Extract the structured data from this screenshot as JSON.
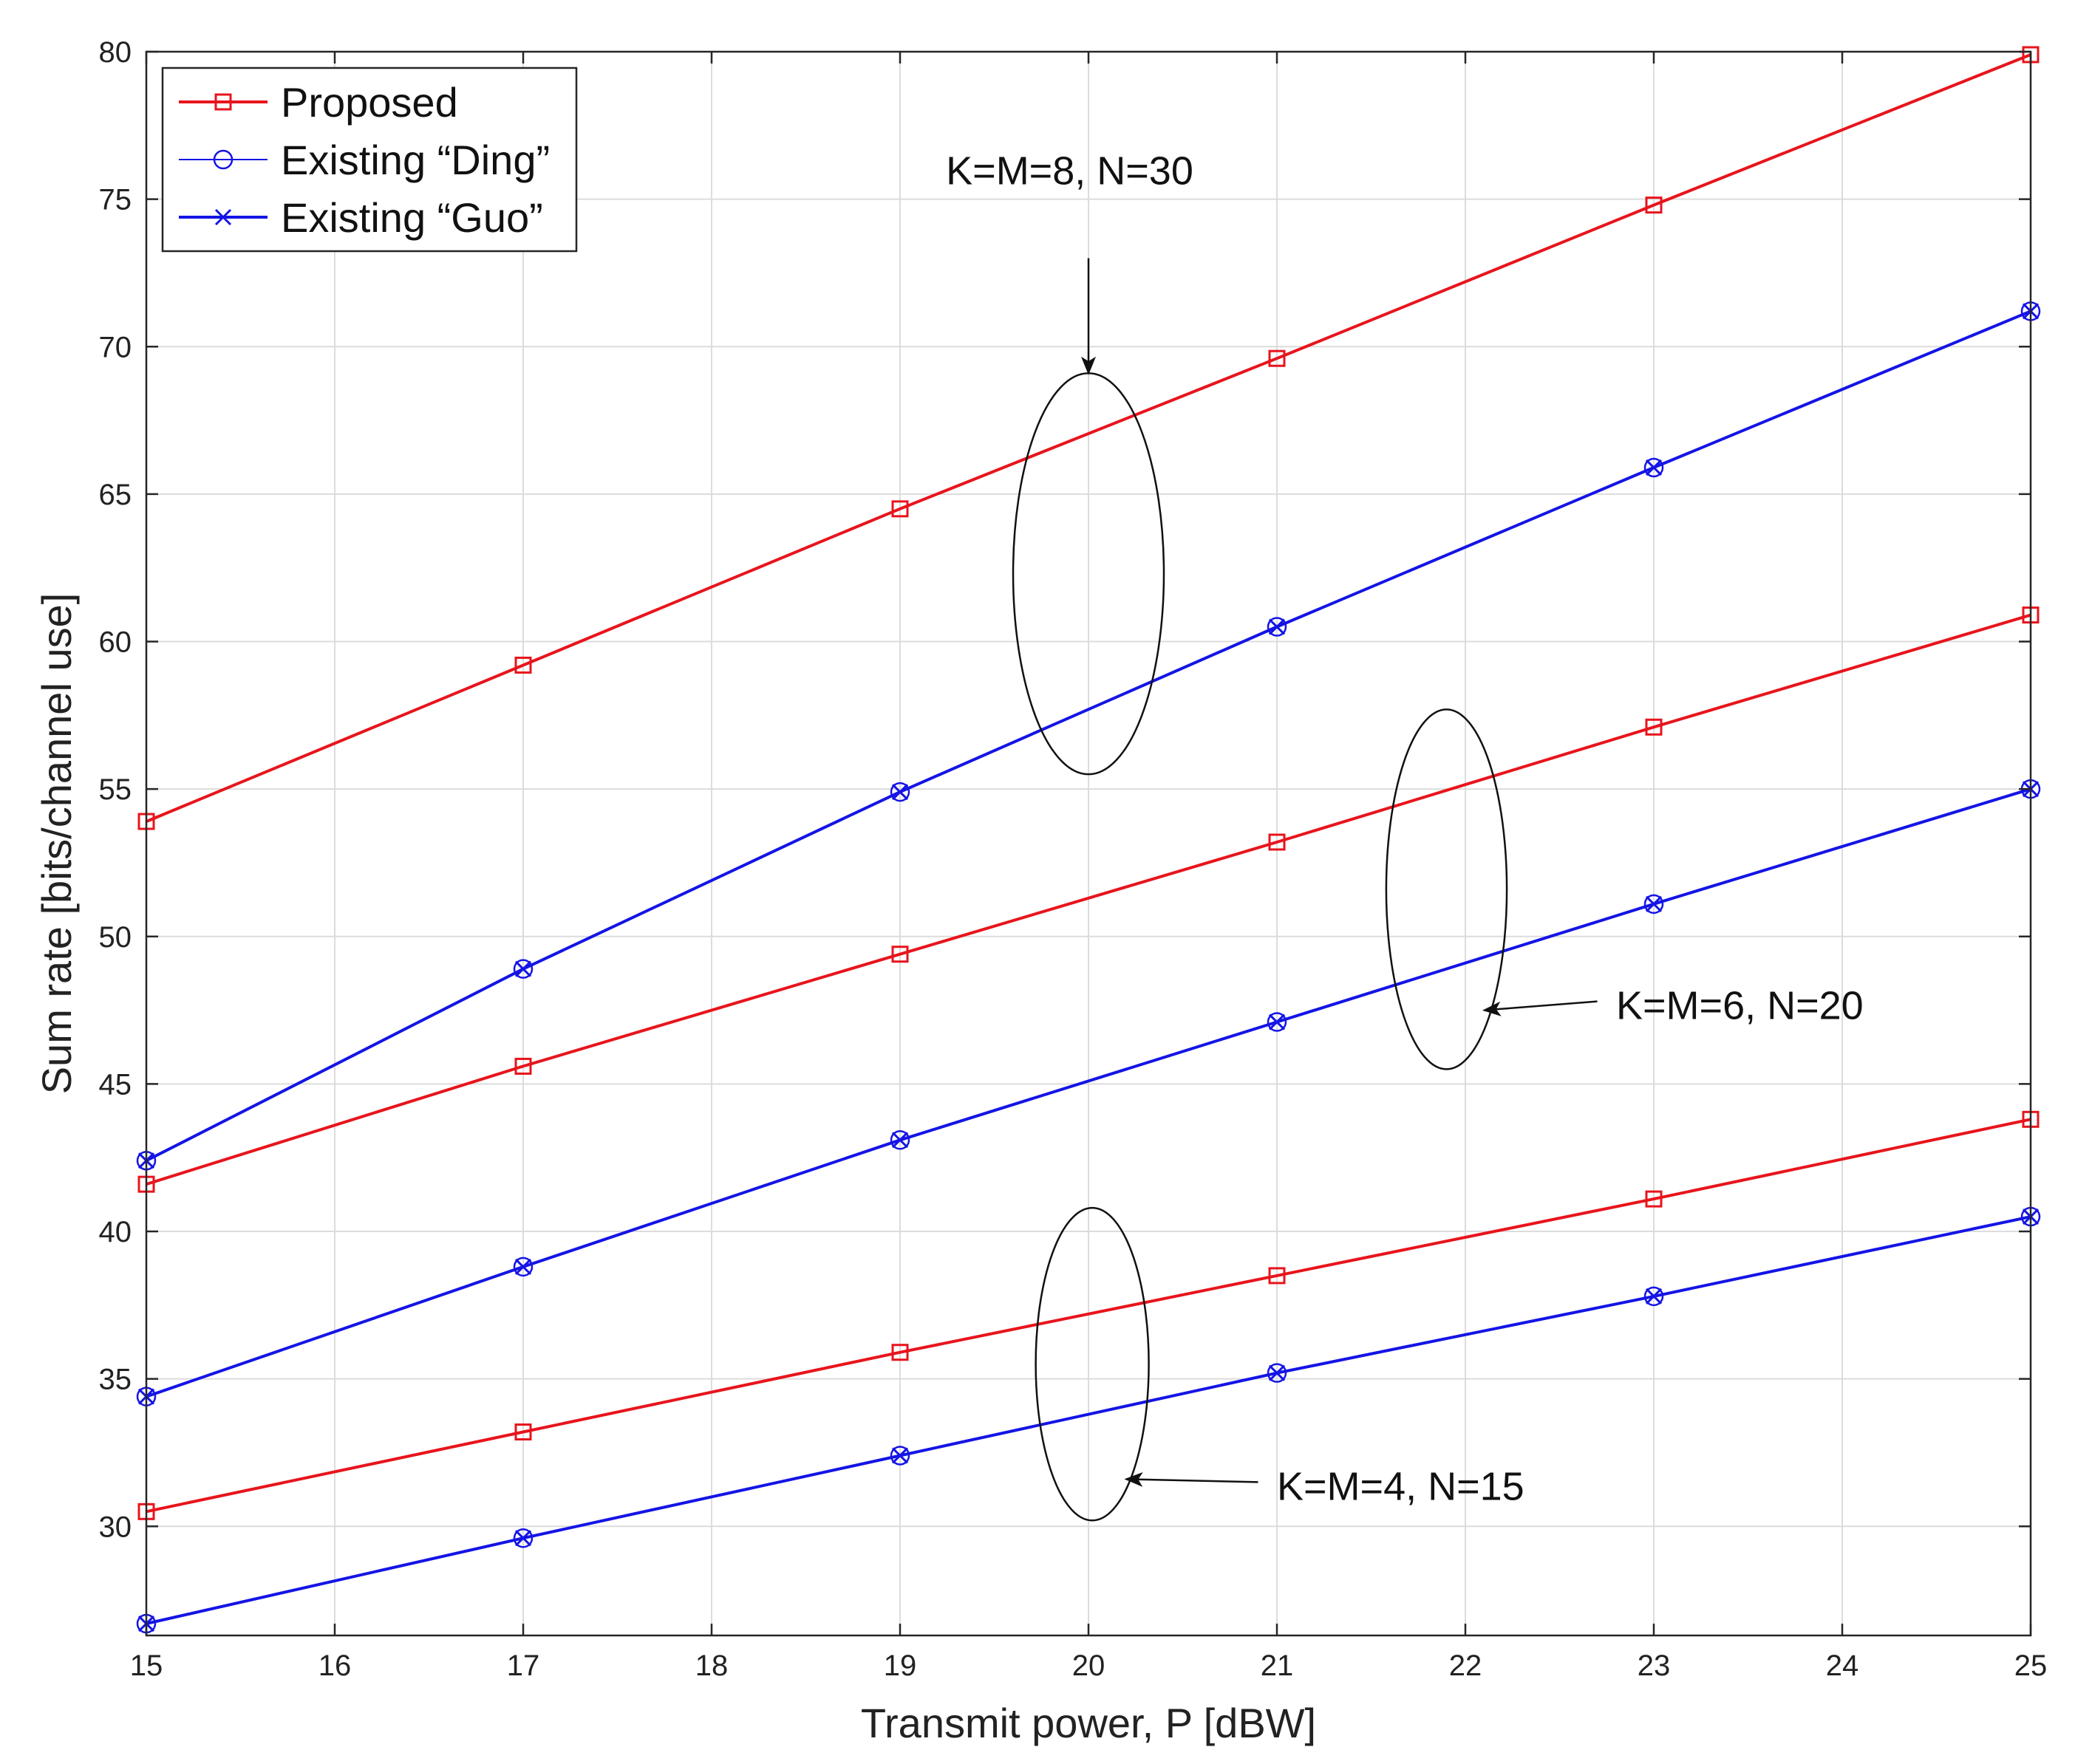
{
  "chart_data": {
    "type": "line",
    "title": "",
    "xlabel": "Transmit power, P [dBW]",
    "ylabel": "Sum rate [bits/channel use]",
    "xlim": [
      15,
      25
    ],
    "ylim": [
      26.3,
      80
    ],
    "xticks": [
      15,
      16,
      17,
      18,
      19,
      20,
      21,
      22,
      23,
      24,
      25
    ],
    "yticks": [
      30,
      35,
      40,
      45,
      50,
      55,
      60,
      65,
      70,
      75,
      80
    ],
    "grid": true,
    "legend_position": "top-left",
    "legend": [
      {
        "label": "Proposed",
        "color": "#e8141c",
        "marker": "square",
        "linewidth": 4
      },
      {
        "label": "Existing “Ding”",
        "color": "#1414e6",
        "marker": "circle",
        "linewidth": 2
      },
      {
        "label": "Existing “Guo”",
        "color": "#1414e6",
        "marker": "x",
        "linewidth": 4
      }
    ],
    "series": [
      {
        "name": "Proposed",
        "group": "K=M=8, N=30",
        "style": "proposed",
        "x": [
          15,
          17,
          19,
          21,
          23,
          25
        ],
        "y": [
          53.9,
          59.2,
          64.5,
          69.6,
          74.8,
          79.9
        ]
      },
      {
        "name": "Existing “Ding”",
        "group": "K=M=8, N=30",
        "style": "ding",
        "x": [
          15,
          17,
          19,
          21,
          23,
          25
        ],
        "y": [
          42.4,
          48.9,
          54.9,
          60.5,
          65.9,
          71.2
        ]
      },
      {
        "name": "Existing “Guo”",
        "group": "K=M=8, N=30",
        "style": "guo",
        "x": [
          15,
          17,
          19,
          21,
          23,
          25
        ],
        "y": [
          42.4,
          48.9,
          54.9,
          60.5,
          65.9,
          71.2
        ]
      },
      {
        "name": "Proposed",
        "group": "K=M=6, N=20",
        "style": "proposed",
        "x": [
          15,
          17,
          19,
          21,
          23,
          25
        ],
        "y": [
          41.6,
          45.6,
          49.4,
          53.2,
          57.1,
          60.9
        ]
      },
      {
        "name": "Existing “Ding”",
        "group": "K=M=6, N=20",
        "style": "ding",
        "x": [
          15,
          17,
          19,
          21,
          23,
          25
        ],
        "y": [
          34.4,
          38.8,
          43.1,
          47.1,
          51.1,
          55.0
        ]
      },
      {
        "name": "Existing “Guo”",
        "group": "K=M=6, N=20",
        "style": "guo",
        "x": [
          15,
          17,
          19,
          21,
          23,
          25
        ],
        "y": [
          34.4,
          38.8,
          43.1,
          47.1,
          51.1,
          55.0
        ]
      },
      {
        "name": "Proposed",
        "group": "K=M=4, N=15",
        "style": "proposed",
        "x": [
          15,
          17,
          19,
          21,
          23,
          25
        ],
        "y": [
          30.5,
          33.2,
          35.9,
          38.5,
          41.1,
          43.8
        ]
      },
      {
        "name": "Existing “Ding”",
        "group": "K=M=4, N=15",
        "style": "ding",
        "x": [
          15,
          17,
          19,
          21,
          23,
          25
        ],
        "y": [
          26.7,
          29.6,
          32.4,
          35.2,
          37.8,
          40.5
        ]
      },
      {
        "name": "Existing “Guo”",
        "group": "K=M=4, N=15",
        "style": "guo",
        "x": [
          15,
          17,
          19,
          21,
          23,
          25
        ],
        "y": [
          26.7,
          29.6,
          32.4,
          35.2,
          37.8,
          40.5
        ]
      }
    ],
    "annotations": [
      {
        "text": "K=M=8, N=30",
        "ellipse_center": [
          20.0,
          62.3
        ],
        "ellipse_rx": 0.4,
        "ellipse_ry": 6.8,
        "arrow_from": [
          20.0,
          73.0
        ],
        "arrow_to": [
          20.0,
          69.1
        ],
        "label_at": [
          19.9,
          75.5
        ],
        "anchor": "middle"
      },
      {
        "text": "K=M=6, N=20",
        "ellipse_center": [
          21.9,
          51.6
        ],
        "ellipse_rx": 0.32,
        "ellipse_ry": 6.1,
        "arrow_from": [
          22.7,
          47.8
        ],
        "arrow_to": [
          22.1,
          47.5
        ],
        "label_at": [
          22.8,
          47.2
        ],
        "anchor": "start"
      },
      {
        "text": "K=M=4, N=15",
        "ellipse_center": [
          20.02,
          35.5
        ],
        "ellipse_rx": 0.3,
        "ellipse_ry": 5.3,
        "arrow_from": [
          20.9,
          31.5
        ],
        "arrow_to": [
          20.2,
          31.6
        ],
        "label_at": [
          21.0,
          30.9
        ],
        "anchor": "start"
      }
    ]
  }
}
